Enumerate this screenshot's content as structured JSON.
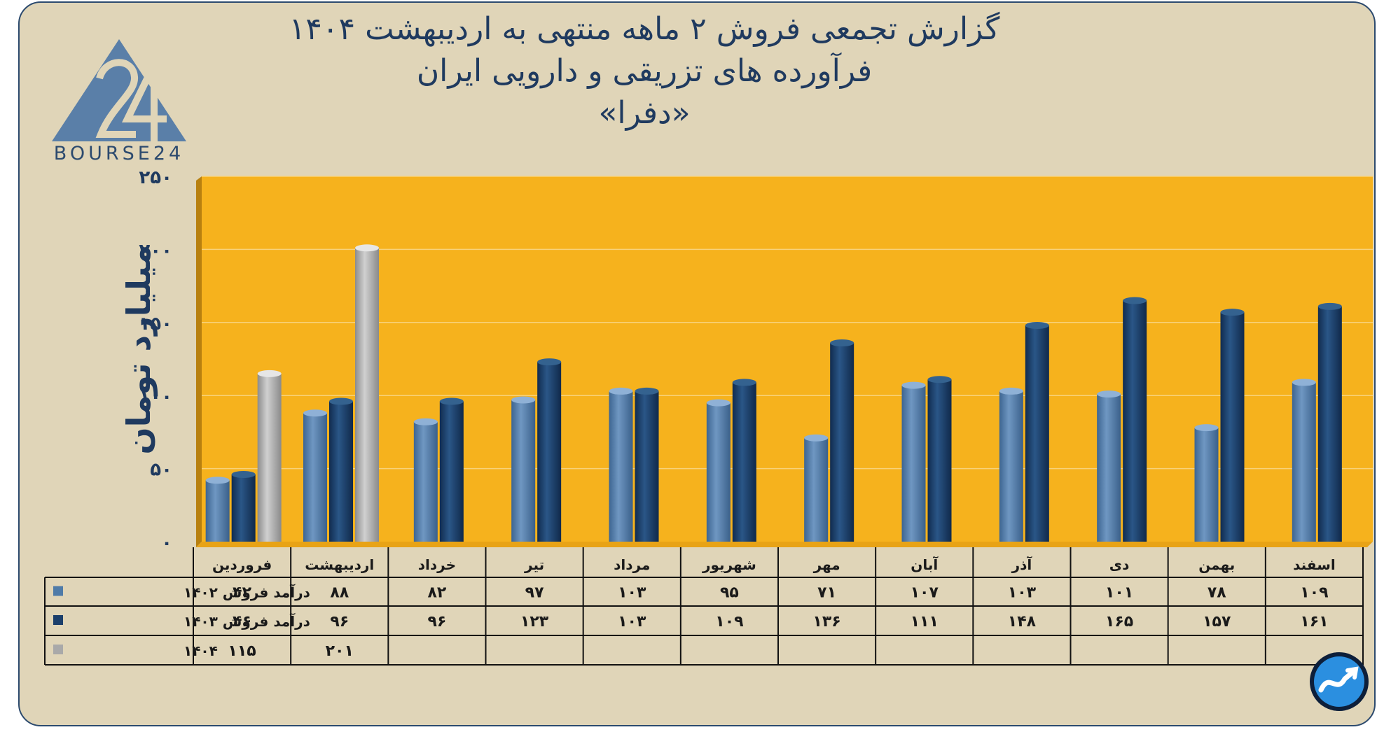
{
  "title_lines": [
    "گزارش تجمعی فروش ۲ ماهه منتهی به اردیبهشت ۱۴۰۴",
    "فرآورده های تزریقی و دارویی ایران",
    "«دفرا»"
  ],
  "logo_text": "BOURSE24",
  "colors": {
    "background": "#e0d5b8",
    "plot_area": "#f6b21d",
    "series_1402": "#4f7ba8",
    "series_1403": "#1b3f6b",
    "series_1404": "#a9a9a9",
    "text": "#1f3a5f"
  },
  "chart_data": {
    "type": "bar",
    "title": "گزارش تجمعی فروش ۲ ماهه منتهی به اردیبهشت ۱۴۰۴ فرآورده های تزریقی و دارویی ایران «دفرا»",
    "ylabel": "میلیارد تومان",
    "ylim": [
      0,
      250
    ],
    "yticks": [
      0,
      50,
      100,
      150,
      200,
      250
    ],
    "ytick_labels": [
      "۰",
      "۵۰",
      "۱۰۰",
      "۱۵۰",
      "۲۰۰",
      "۲۵۰"
    ],
    "grid": true,
    "categories": [
      "فروردین",
      "اردیبهشت",
      "خرداد",
      "تیر",
      "مرداد",
      "شهریور",
      "مهر",
      "آبان",
      "آذر",
      "دی",
      "بهمن",
      "اسفند"
    ],
    "series": [
      {
        "name": "درآمد فروش ۱۴۰۲",
        "values": [
          42,
          88,
          82,
          97,
          103,
          95,
          71,
          107,
          103,
          101,
          78,
          109
        ],
        "labels": [
          "۴۲",
          "۸۸",
          "۸۲",
          "۹۷",
          "۱۰۳",
          "۹۵",
          "۷۱",
          "۱۰۷",
          "۱۰۳",
          "۱۰۱",
          "۷۸",
          "۱۰۹"
        ]
      },
      {
        "name": "درآمد فروش ۱۴۰۳",
        "values": [
          46,
          96,
          96,
          123,
          103,
          109,
          136,
          111,
          148,
          165,
          157,
          161
        ],
        "labels": [
          "۴۶",
          "۹۶",
          "۹۶",
          "۱۲۳",
          "۱۰۳",
          "۱۰۹",
          "۱۳۶",
          "۱۱۱",
          "۱۴۸",
          "۱۶۵",
          "۱۵۷",
          "۱۶۱"
        ]
      },
      {
        "name": "۱۴۰۴",
        "values": [
          115,
          201,
          null,
          null,
          null,
          null,
          null,
          null,
          null,
          null,
          null,
          null
        ],
        "labels": [
          "۱۱۵",
          "۲۰۱",
          "",
          "",
          "",
          "",
          "",
          "",
          "",
          "",
          "",
          ""
        ]
      }
    ],
    "legend": "table-left"
  }
}
